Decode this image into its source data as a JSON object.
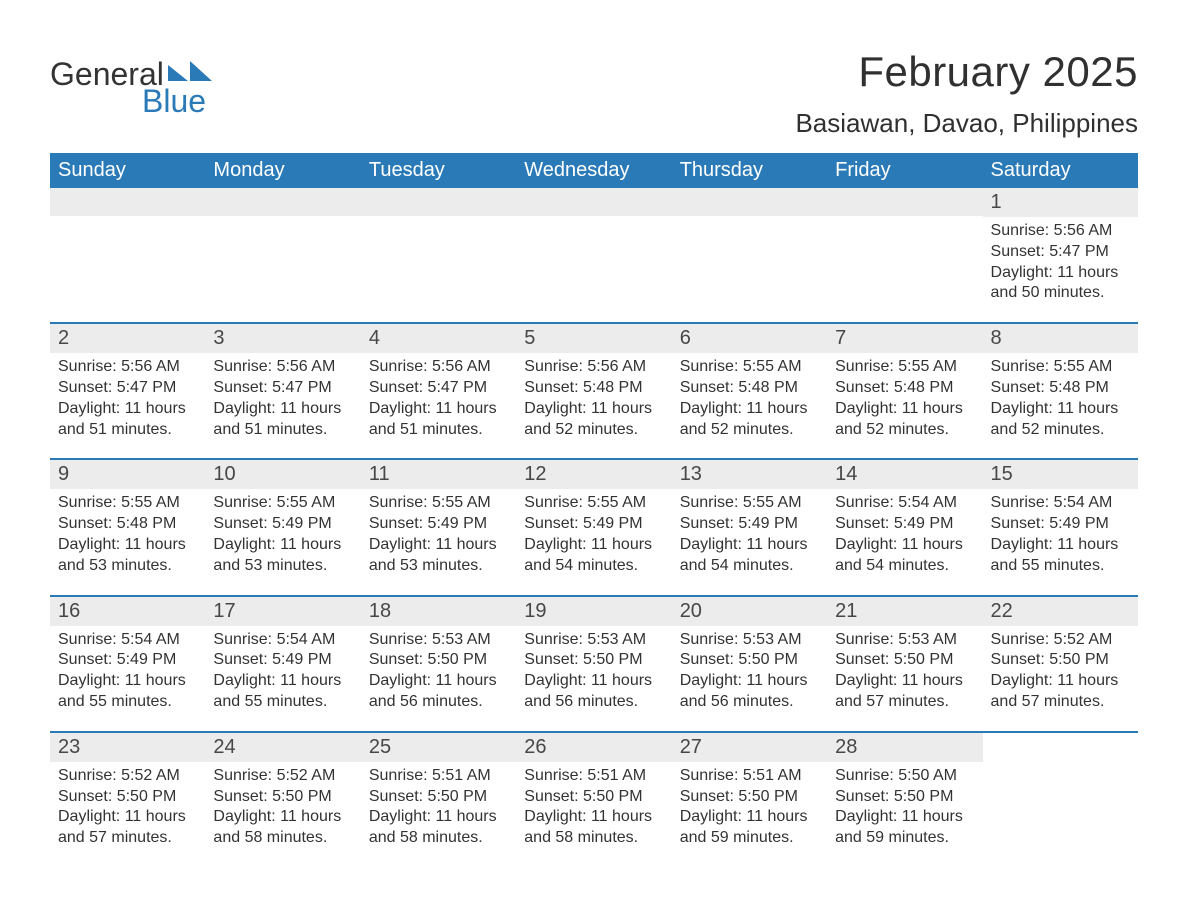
{
  "brand": {
    "word1": "General",
    "word2": "Blue",
    "accent_color": "#2a7ab8"
  },
  "title": {
    "month": "February 2025",
    "location": "Basiawan, Davao, Philippines"
  },
  "colors": {
    "header_bg": "#2a7ab8",
    "header_text": "#ffffff",
    "band_bg": "#ececec",
    "text": "#333333",
    "daynum": "#474747",
    "page_bg": "#ffffff"
  },
  "typography": {
    "title_fontsize": 42,
    "location_fontsize": 26,
    "header_fontsize": 20,
    "daynum_fontsize": 20,
    "body_fontsize": 16
  },
  "layout": {
    "columns": 7,
    "rows": 5,
    "start_weekday_index": 6
  },
  "weekdays": [
    "Sunday",
    "Monday",
    "Tuesday",
    "Wednesday",
    "Thursday",
    "Friday",
    "Saturday"
  ],
  "weeks": [
    [
      null,
      null,
      null,
      null,
      null,
      null,
      {
        "n": "1",
        "sunrise": "Sunrise: 5:56 AM",
        "sunset": "Sunset: 5:47 PM",
        "daylight1": "Daylight: 11 hours",
        "daylight2": "and 50 minutes."
      }
    ],
    [
      {
        "n": "2",
        "sunrise": "Sunrise: 5:56 AM",
        "sunset": "Sunset: 5:47 PM",
        "daylight1": "Daylight: 11 hours",
        "daylight2": "and 51 minutes."
      },
      {
        "n": "3",
        "sunrise": "Sunrise: 5:56 AM",
        "sunset": "Sunset: 5:47 PM",
        "daylight1": "Daylight: 11 hours",
        "daylight2": "and 51 minutes."
      },
      {
        "n": "4",
        "sunrise": "Sunrise: 5:56 AM",
        "sunset": "Sunset: 5:47 PM",
        "daylight1": "Daylight: 11 hours",
        "daylight2": "and 51 minutes."
      },
      {
        "n": "5",
        "sunrise": "Sunrise: 5:56 AM",
        "sunset": "Sunset: 5:48 PM",
        "daylight1": "Daylight: 11 hours",
        "daylight2": "and 52 minutes."
      },
      {
        "n": "6",
        "sunrise": "Sunrise: 5:55 AM",
        "sunset": "Sunset: 5:48 PM",
        "daylight1": "Daylight: 11 hours",
        "daylight2": "and 52 minutes."
      },
      {
        "n": "7",
        "sunrise": "Sunrise: 5:55 AM",
        "sunset": "Sunset: 5:48 PM",
        "daylight1": "Daylight: 11 hours",
        "daylight2": "and 52 minutes."
      },
      {
        "n": "8",
        "sunrise": "Sunrise: 5:55 AM",
        "sunset": "Sunset: 5:48 PM",
        "daylight1": "Daylight: 11 hours",
        "daylight2": "and 52 minutes."
      }
    ],
    [
      {
        "n": "9",
        "sunrise": "Sunrise: 5:55 AM",
        "sunset": "Sunset: 5:48 PM",
        "daylight1": "Daylight: 11 hours",
        "daylight2": "and 53 minutes."
      },
      {
        "n": "10",
        "sunrise": "Sunrise: 5:55 AM",
        "sunset": "Sunset: 5:49 PM",
        "daylight1": "Daylight: 11 hours",
        "daylight2": "and 53 minutes."
      },
      {
        "n": "11",
        "sunrise": "Sunrise: 5:55 AM",
        "sunset": "Sunset: 5:49 PM",
        "daylight1": "Daylight: 11 hours",
        "daylight2": "and 53 minutes."
      },
      {
        "n": "12",
        "sunrise": "Sunrise: 5:55 AM",
        "sunset": "Sunset: 5:49 PM",
        "daylight1": "Daylight: 11 hours",
        "daylight2": "and 54 minutes."
      },
      {
        "n": "13",
        "sunrise": "Sunrise: 5:55 AM",
        "sunset": "Sunset: 5:49 PM",
        "daylight1": "Daylight: 11 hours",
        "daylight2": "and 54 minutes."
      },
      {
        "n": "14",
        "sunrise": "Sunrise: 5:54 AM",
        "sunset": "Sunset: 5:49 PM",
        "daylight1": "Daylight: 11 hours",
        "daylight2": "and 54 minutes."
      },
      {
        "n": "15",
        "sunrise": "Sunrise: 5:54 AM",
        "sunset": "Sunset: 5:49 PM",
        "daylight1": "Daylight: 11 hours",
        "daylight2": "and 55 minutes."
      }
    ],
    [
      {
        "n": "16",
        "sunrise": "Sunrise: 5:54 AM",
        "sunset": "Sunset: 5:49 PM",
        "daylight1": "Daylight: 11 hours",
        "daylight2": "and 55 minutes."
      },
      {
        "n": "17",
        "sunrise": "Sunrise: 5:54 AM",
        "sunset": "Sunset: 5:49 PM",
        "daylight1": "Daylight: 11 hours",
        "daylight2": "and 55 minutes."
      },
      {
        "n": "18",
        "sunrise": "Sunrise: 5:53 AM",
        "sunset": "Sunset: 5:50 PM",
        "daylight1": "Daylight: 11 hours",
        "daylight2": "and 56 minutes."
      },
      {
        "n": "19",
        "sunrise": "Sunrise: 5:53 AM",
        "sunset": "Sunset: 5:50 PM",
        "daylight1": "Daylight: 11 hours",
        "daylight2": "and 56 minutes."
      },
      {
        "n": "20",
        "sunrise": "Sunrise: 5:53 AM",
        "sunset": "Sunset: 5:50 PM",
        "daylight1": "Daylight: 11 hours",
        "daylight2": "and 56 minutes."
      },
      {
        "n": "21",
        "sunrise": "Sunrise: 5:53 AM",
        "sunset": "Sunset: 5:50 PM",
        "daylight1": "Daylight: 11 hours",
        "daylight2": "and 57 minutes."
      },
      {
        "n": "22",
        "sunrise": "Sunrise: 5:52 AM",
        "sunset": "Sunset: 5:50 PM",
        "daylight1": "Daylight: 11 hours",
        "daylight2": "and 57 minutes."
      }
    ],
    [
      {
        "n": "23",
        "sunrise": "Sunrise: 5:52 AM",
        "sunset": "Sunset: 5:50 PM",
        "daylight1": "Daylight: 11 hours",
        "daylight2": "and 57 minutes."
      },
      {
        "n": "24",
        "sunrise": "Sunrise: 5:52 AM",
        "sunset": "Sunset: 5:50 PM",
        "daylight1": "Daylight: 11 hours",
        "daylight2": "and 58 minutes."
      },
      {
        "n": "25",
        "sunrise": "Sunrise: 5:51 AM",
        "sunset": "Sunset: 5:50 PM",
        "daylight1": "Daylight: 11 hours",
        "daylight2": "and 58 minutes."
      },
      {
        "n": "26",
        "sunrise": "Sunrise: 5:51 AM",
        "sunset": "Sunset: 5:50 PM",
        "daylight1": "Daylight: 11 hours",
        "daylight2": "and 58 minutes."
      },
      {
        "n": "27",
        "sunrise": "Sunrise: 5:51 AM",
        "sunset": "Sunset: 5:50 PM",
        "daylight1": "Daylight: 11 hours",
        "daylight2": "and 59 minutes."
      },
      {
        "n": "28",
        "sunrise": "Sunrise: 5:50 AM",
        "sunset": "Sunset: 5:50 PM",
        "daylight1": "Daylight: 11 hours",
        "daylight2": "and 59 minutes."
      },
      null
    ]
  ]
}
